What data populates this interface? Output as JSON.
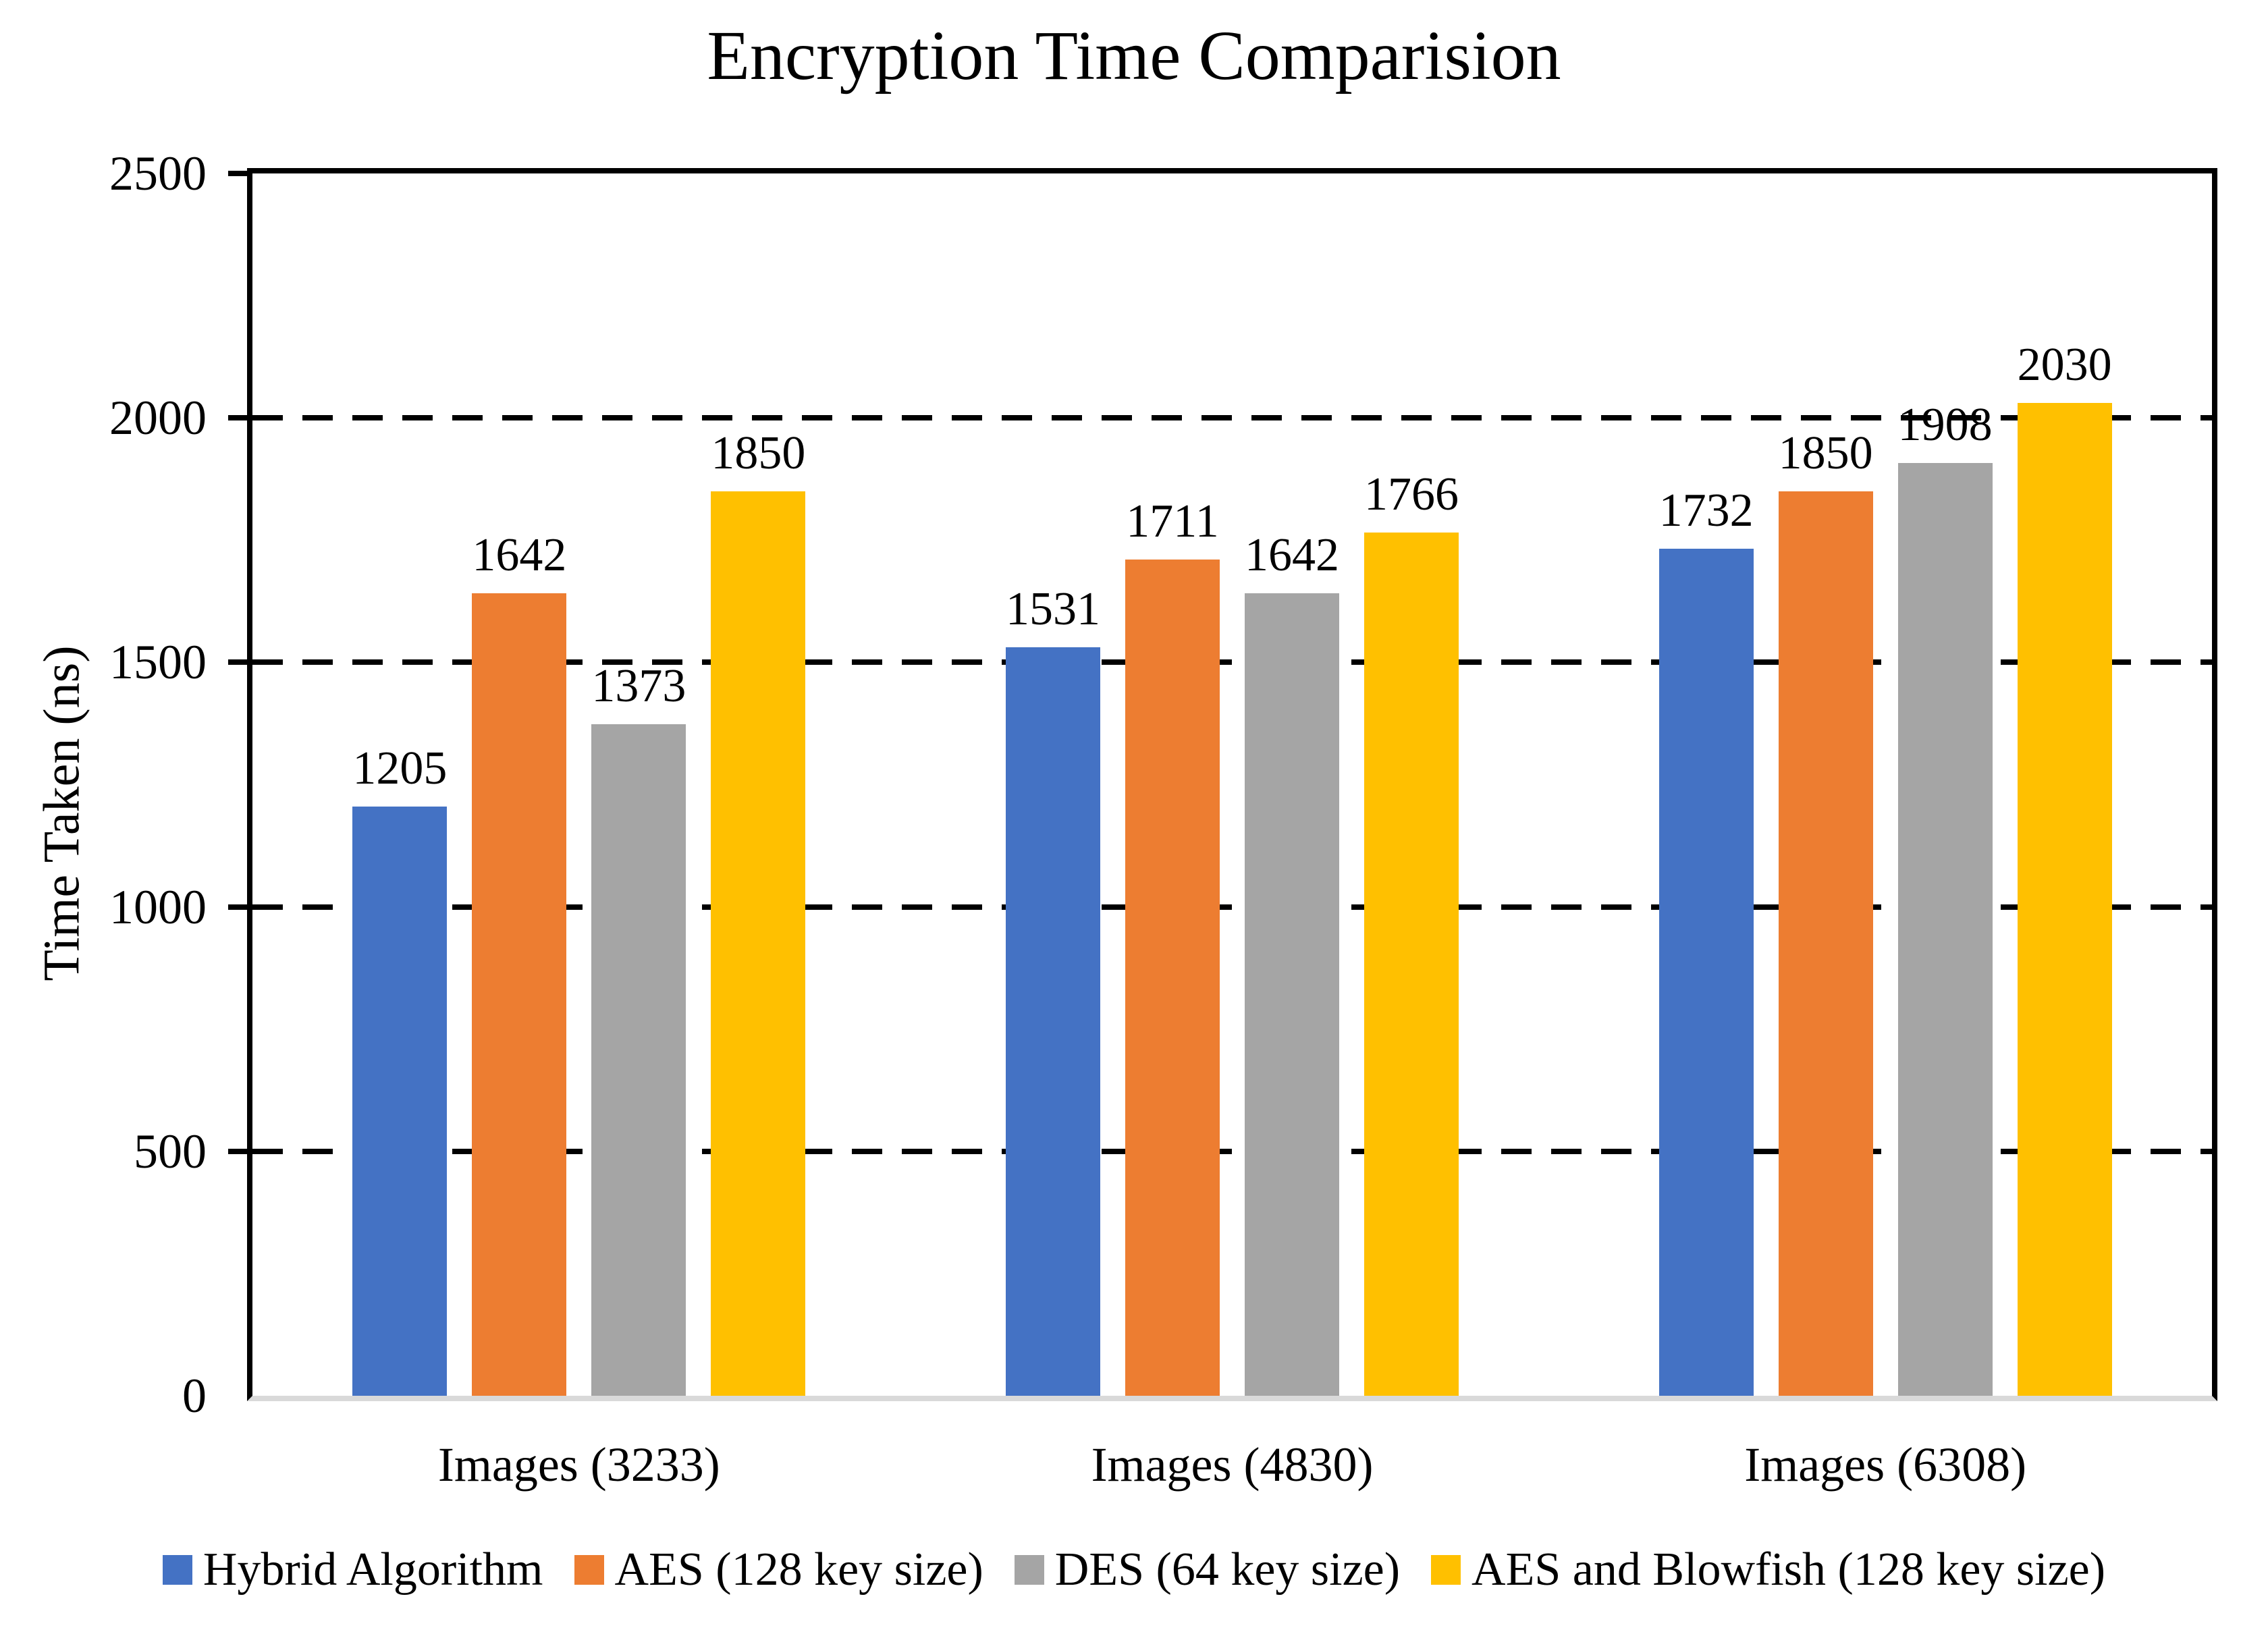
{
  "title": "Encryption Time Comparision",
  "chart_data": {
    "type": "bar",
    "title": "Encryption Time Comparision",
    "xlabel": "",
    "ylabel": "Time Taken (ns)",
    "categories": [
      "Images (3233)",
      "Images (4830)",
      "Images (6308)"
    ],
    "series": [
      {
        "name": "Hybrid Algorithm",
        "color": "#4472C4",
        "values": [
          1205,
          1531,
          1732
        ]
      },
      {
        "name": "AES (128 key size)",
        "color": "#ED7D31",
        "values": [
          1642,
          1711,
          1850
        ]
      },
      {
        "name": "DES (64 key size)",
        "color": "#A5A5A5",
        "values": [
          1373,
          1642,
          1908
        ]
      },
      {
        "name": "AES and Blowfish (128 key size)",
        "color": "#FFC000",
        "values": [
          1850,
          1766,
          2030
        ]
      }
    ],
    "ylim": [
      0,
      2500
    ],
    "yticks": [
      0,
      500,
      1000,
      1500,
      2000,
      2500
    ],
    "gridlines": [
      500,
      1000,
      1500,
      2000
    ],
    "grid_style": "dashed",
    "legend_position": "bottom",
    "data_labels": true,
    "colors": {
      "axis_line": "#000000",
      "baseline": "#D9D9D9",
      "gridline": "#000000",
      "text": "#000000",
      "background": "#FFFFFF"
    }
  }
}
